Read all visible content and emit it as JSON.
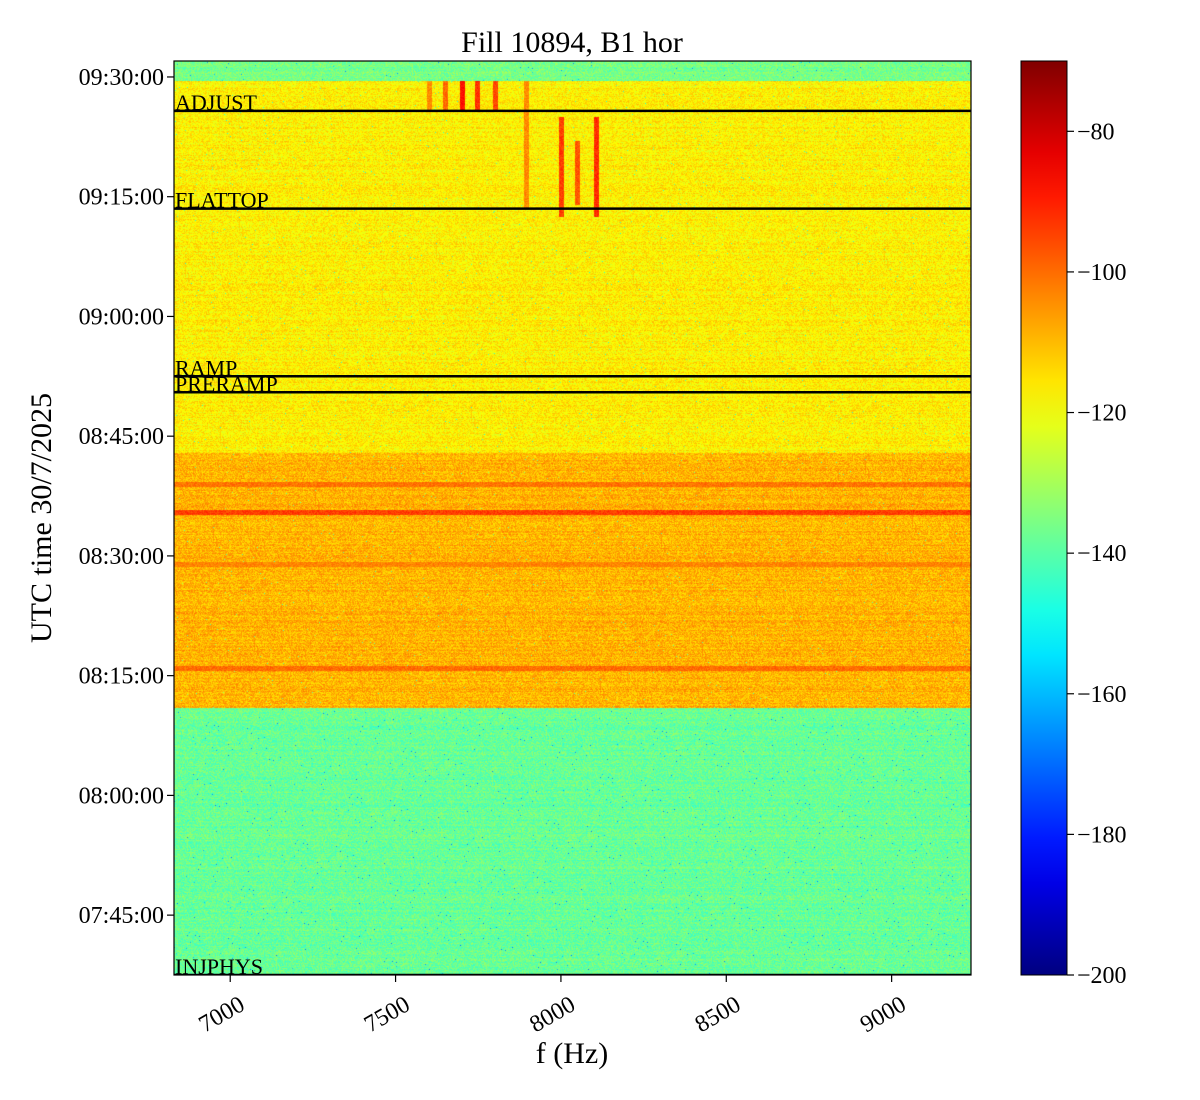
{
  "chart_data": {
    "type": "heatmap",
    "title": "Fill 10894, B1 hor",
    "xlabel": "f (Hz)",
    "ylabel": "UTC time 30/7/2025",
    "xlim": [
      6830,
      9240
    ],
    "x_ticks": [
      {
        "value": 7000,
        "label": "7000"
      },
      {
        "value": 7500,
        "label": "7500"
      },
      {
        "value": 8000,
        "label": "8000"
      },
      {
        "value": 8500,
        "label": "8500"
      },
      {
        "value": 9000,
        "label": "9000"
      }
    ],
    "ylim": [
      "07:37:30",
      "09:32:00"
    ],
    "y_ticks": [
      {
        "value": "07:45:00",
        "label": "07:45:00"
      },
      {
        "value": "08:00:00",
        "label": "08:00:00"
      },
      {
        "value": "08:15:00",
        "label": "08:15:00"
      },
      {
        "value": "08:30:00",
        "label": "08:30:00"
      },
      {
        "value": "08:45:00",
        "label": "08:45:00"
      },
      {
        "value": "09:00:00",
        "label": "09:00:00"
      },
      {
        "value": "09:15:00",
        "label": "09:15:00"
      },
      {
        "value": "09:30:00",
        "label": "09:30:00"
      }
    ],
    "colorbar": {
      "colormap": "jet",
      "range": [
        -200,
        -70
      ],
      "ticks": [
        {
          "value": -200,
          "label": "−200"
        },
        {
          "value": -180,
          "label": "−180"
        },
        {
          "value": -160,
          "label": "−160"
        },
        {
          "value": -140,
          "label": "−140"
        },
        {
          "value": -120,
          "label": "−120"
        },
        {
          "value": -100,
          "label": "−100"
        },
        {
          "value": -80,
          "label": "−80"
        }
      ]
    },
    "phases": [
      {
        "label": "INJPHYS",
        "time": "07:37:30"
      },
      {
        "label": "PRERAMP",
        "time": "08:50:30"
      },
      {
        "label": "RAMP",
        "time": "08:52:30"
      },
      {
        "label": "FLATTOP",
        "time": "09:13:30"
      },
      {
        "label": "ADJUST",
        "time": "09:25:45"
      }
    ],
    "regions": [
      {
        "from": "07:37:30",
        "to": "08:11:00",
        "level": -138
      },
      {
        "from": "08:11:00",
        "to": "08:43:00",
        "level": -109
      },
      {
        "from": "08:43:00",
        "to": "09:29:30",
        "level": -117
      },
      {
        "from": "09:29:30",
        "to": "09:32:00",
        "level": -136
      }
    ],
    "horizontal_features": [
      {
        "time": "08:16:00",
        "level": -100
      },
      {
        "time": "08:29:00",
        "level": -103
      },
      {
        "time": "08:35:30",
        "level": -94
      },
      {
        "time": "08:39:00",
        "level": -101
      }
    ],
    "vertical_features": [
      {
        "x": 7700,
        "from": "09:25:45",
        "to": "09:29:30",
        "level": -88
      },
      {
        "x": 7745,
        "from": "09:25:45",
        "to": "09:29:30",
        "level": -92
      },
      {
        "x": 7800,
        "from": "09:25:45",
        "to": "09:29:30",
        "level": -95
      },
      {
        "x": 7650,
        "from": "09:25:45",
        "to": "09:29:30",
        "level": -100
      },
      {
        "x": 7600,
        "from": "09:25:45",
        "to": "09:29:30",
        "level": -104
      },
      {
        "x": 8000,
        "from": "09:12:30",
        "to": "09:25:00",
        "level": -94
      },
      {
        "x": 8050,
        "from": "09:14:00",
        "to": "09:22:00",
        "level": -97
      },
      {
        "x": 8105,
        "from": "09:12:30",
        "to": "09:25:00",
        "level": -92
      },
      {
        "x": 7895,
        "from": "09:13:30",
        "to": "09:29:30",
        "level": -104
      }
    ]
  }
}
